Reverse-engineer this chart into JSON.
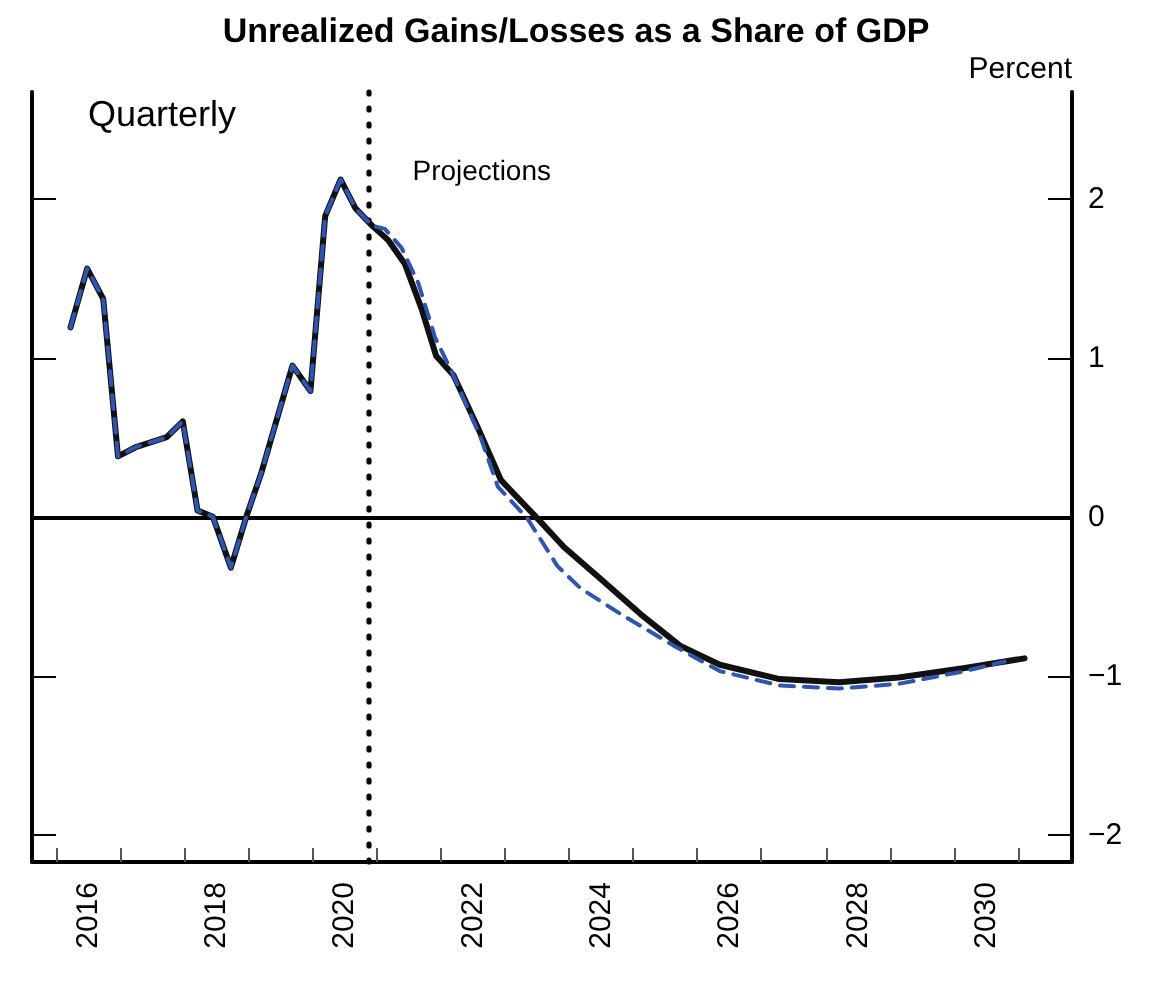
{
  "chart_data": {
    "type": "line",
    "title": "Unrealized Gains/Losses as a Share of GDP",
    "ylabel": "Percent",
    "annotations": [
      "Quarterly"
    ],
    "xlim": [
      2015.63,
      2031.84
    ],
    "xticks": [
      {
        "value": 2016,
        "label": null
      },
      {
        "value": 2016.5,
        "label": "2016"
      },
      {
        "value": 2017,
        "label": null
      },
      {
        "value": 2018,
        "label": null
      },
      {
        "value": 2018.5,
        "label": "2018"
      },
      {
        "value": 2019,
        "label": null
      },
      {
        "value": 2020,
        "label": null
      },
      {
        "value": 2020.5,
        "label": "2020"
      },
      {
        "value": 2021,
        "label": null
      },
      {
        "value": 2022,
        "label": null
      },
      {
        "value": 2022.5,
        "label": "2022"
      },
      {
        "value": 2023,
        "label": null
      },
      {
        "value": 2024,
        "label": null
      },
      {
        "value": 2024.5,
        "label": "2024"
      },
      {
        "value": 2025,
        "label": null
      },
      {
        "value": 2026,
        "label": null
      },
      {
        "value": 2026.5,
        "label": "2026"
      },
      {
        "value": 2027,
        "label": null
      },
      {
        "value": 2028,
        "label": null
      },
      {
        "value": 2028.5,
        "label": "2028"
      },
      {
        "value": 2029,
        "label": null
      },
      {
        "value": 2030,
        "label": null
      },
      {
        "value": 2030.5,
        "label": "2030"
      },
      {
        "value": 2031,
        "label": null
      }
    ],
    "ylim": [
      -2.17,
      2.67
    ],
    "yticks": [
      -2,
      -1,
      0,
      1,
      2
    ],
    "grid": false,
    "marker": "none",
    "ref_lines": [
      {
        "axis": "x",
        "value": 2020.875,
        "label": "Projections",
        "line_style": "dotted",
        "color": "#000000"
      },
      {
        "axis": "y",
        "value": 0,
        "line_style": "solid",
        "color": "#000000"
      }
    ],
    "series": [
      {
        "color": "#2f55b0",
        "line_style": "dashed",
        "x": [
          2016.23,
          2016.49,
          2016.74,
          2016.97,
          2017.26,
          2017.73,
          2017.98,
          2018.21,
          2018.45,
          2018.73,
          2018.97,
          2019.2,
          2019.43,
          2019.69,
          2019.97,
          2020.2,
          2020.44,
          2020.67,
          2020.93,
          2021.13,
          2021.39,
          2021.65,
          2021.91,
          2022.22,
          2022.63,
          2022.89,
          2023.35,
          2023.82,
          2024.18,
          2024.8,
          2025.63,
          2026.35,
          2027.28,
          2028.21,
          2029.14,
          2030.17,
          2030.79
        ],
        "values": [
          1.19,
          1.56,
          1.37,
          0.38,
          0.44,
          0.5,
          0.6,
          0.04,
          0.0,
          -0.32,
          0.0,
          0.27,
          0.59,
          0.95,
          0.79,
          1.89,
          2.12,
          1.94,
          1.83,
          1.81,
          1.69,
          1.47,
          1.13,
          0.87,
          0.49,
          0.19,
          -0.01,
          -0.31,
          -0.45,
          -0.61,
          -0.81,
          -0.97,
          -1.06,
          -1.08,
          -1.05,
          -0.97,
          -0.91
        ]
      },
      {
        "color": "#111111",
        "line_style": "solid",
        "x": [
          2016.23,
          2016.49,
          2016.74,
          2016.97,
          2017.26,
          2017.73,
          2017.98,
          2018.21,
          2018.45,
          2018.73,
          2018.97,
          2019.2,
          2019.43,
          2019.69,
          2019.97,
          2020.2,
          2020.44,
          2020.67,
          2020.93,
          2021.18,
          2021.44,
          2021.7,
          2021.93,
          2022.2,
          2022.58,
          2022.94,
          2023.46,
          2023.92,
          2024.49,
          2025.11,
          2025.73,
          2026.35,
          2027.28,
          2028.21,
          2029.14,
          2030.17,
          2031.1
        ],
        "values": [
          1.19,
          1.56,
          1.37,
          0.38,
          0.44,
          0.5,
          0.6,
          0.04,
          0.0,
          -0.32,
          0.0,
          0.27,
          0.59,
          0.95,
          0.79,
          1.89,
          2.12,
          1.94,
          1.83,
          1.74,
          1.59,
          1.31,
          1.01,
          0.89,
          0.56,
          0.23,
          0.01,
          -0.19,
          -0.39,
          -0.61,
          -0.81,
          -0.93,
          -1.02,
          -1.04,
          -1.01,
          -0.95,
          -0.89
        ]
      }
    ]
  }
}
